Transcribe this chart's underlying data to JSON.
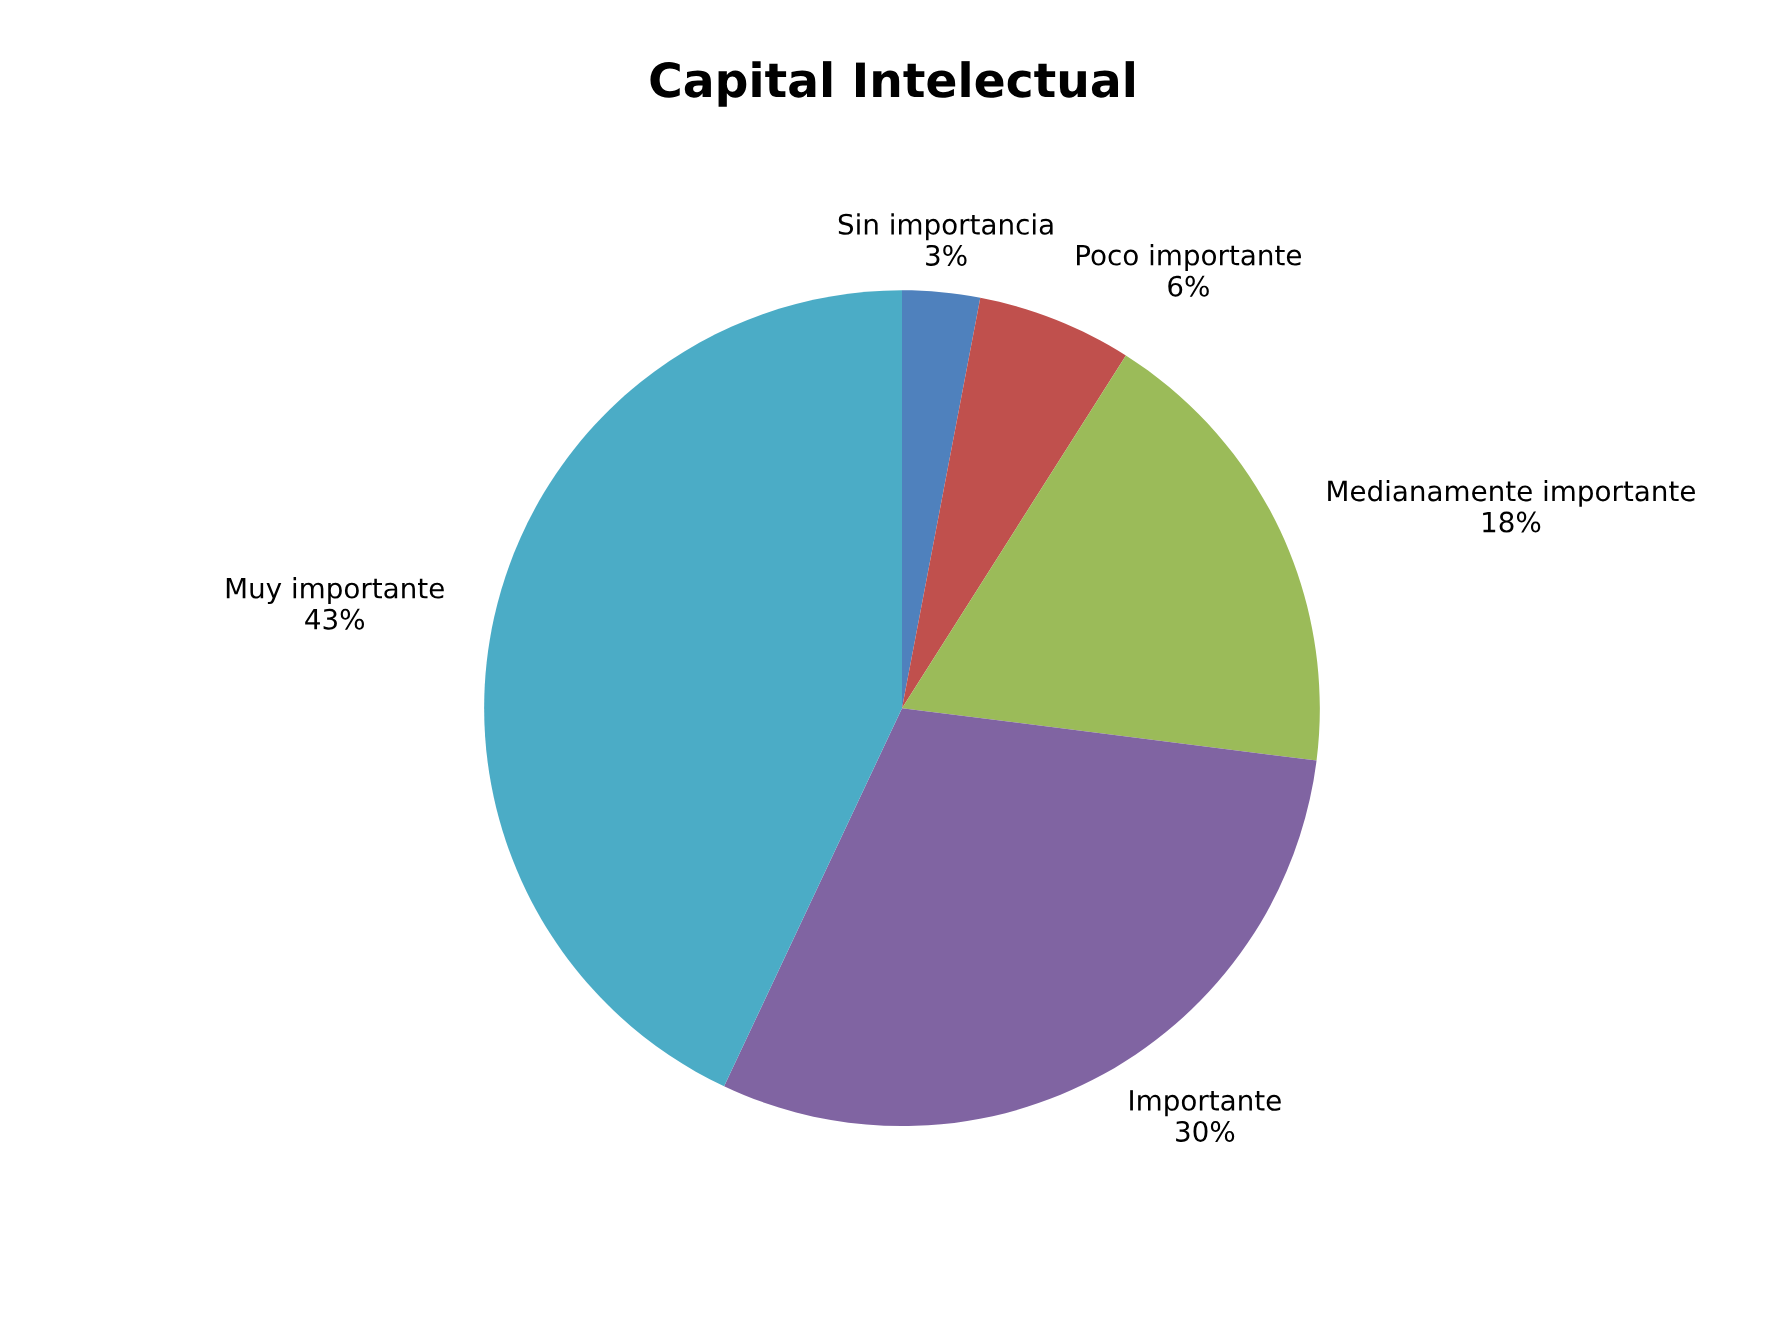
{
  "chart_data": {
    "type": "pie",
    "title": "Capital Intelectual",
    "categories": [
      "Sin importancia",
      "Poco importante",
      "Medianamente importante",
      "Importante",
      "Muy importante"
    ],
    "values": [
      3,
      6,
      18,
      30,
      43
    ],
    "colors": [
      "#4f81bd",
      "#c0504d",
      "#9bbb59",
      "#8064a2",
      "#4bacc6"
    ],
    "value_labels": [
      "3%",
      "6%",
      "18%",
      "30%",
      "43%"
    ],
    "legend": false
  }
}
